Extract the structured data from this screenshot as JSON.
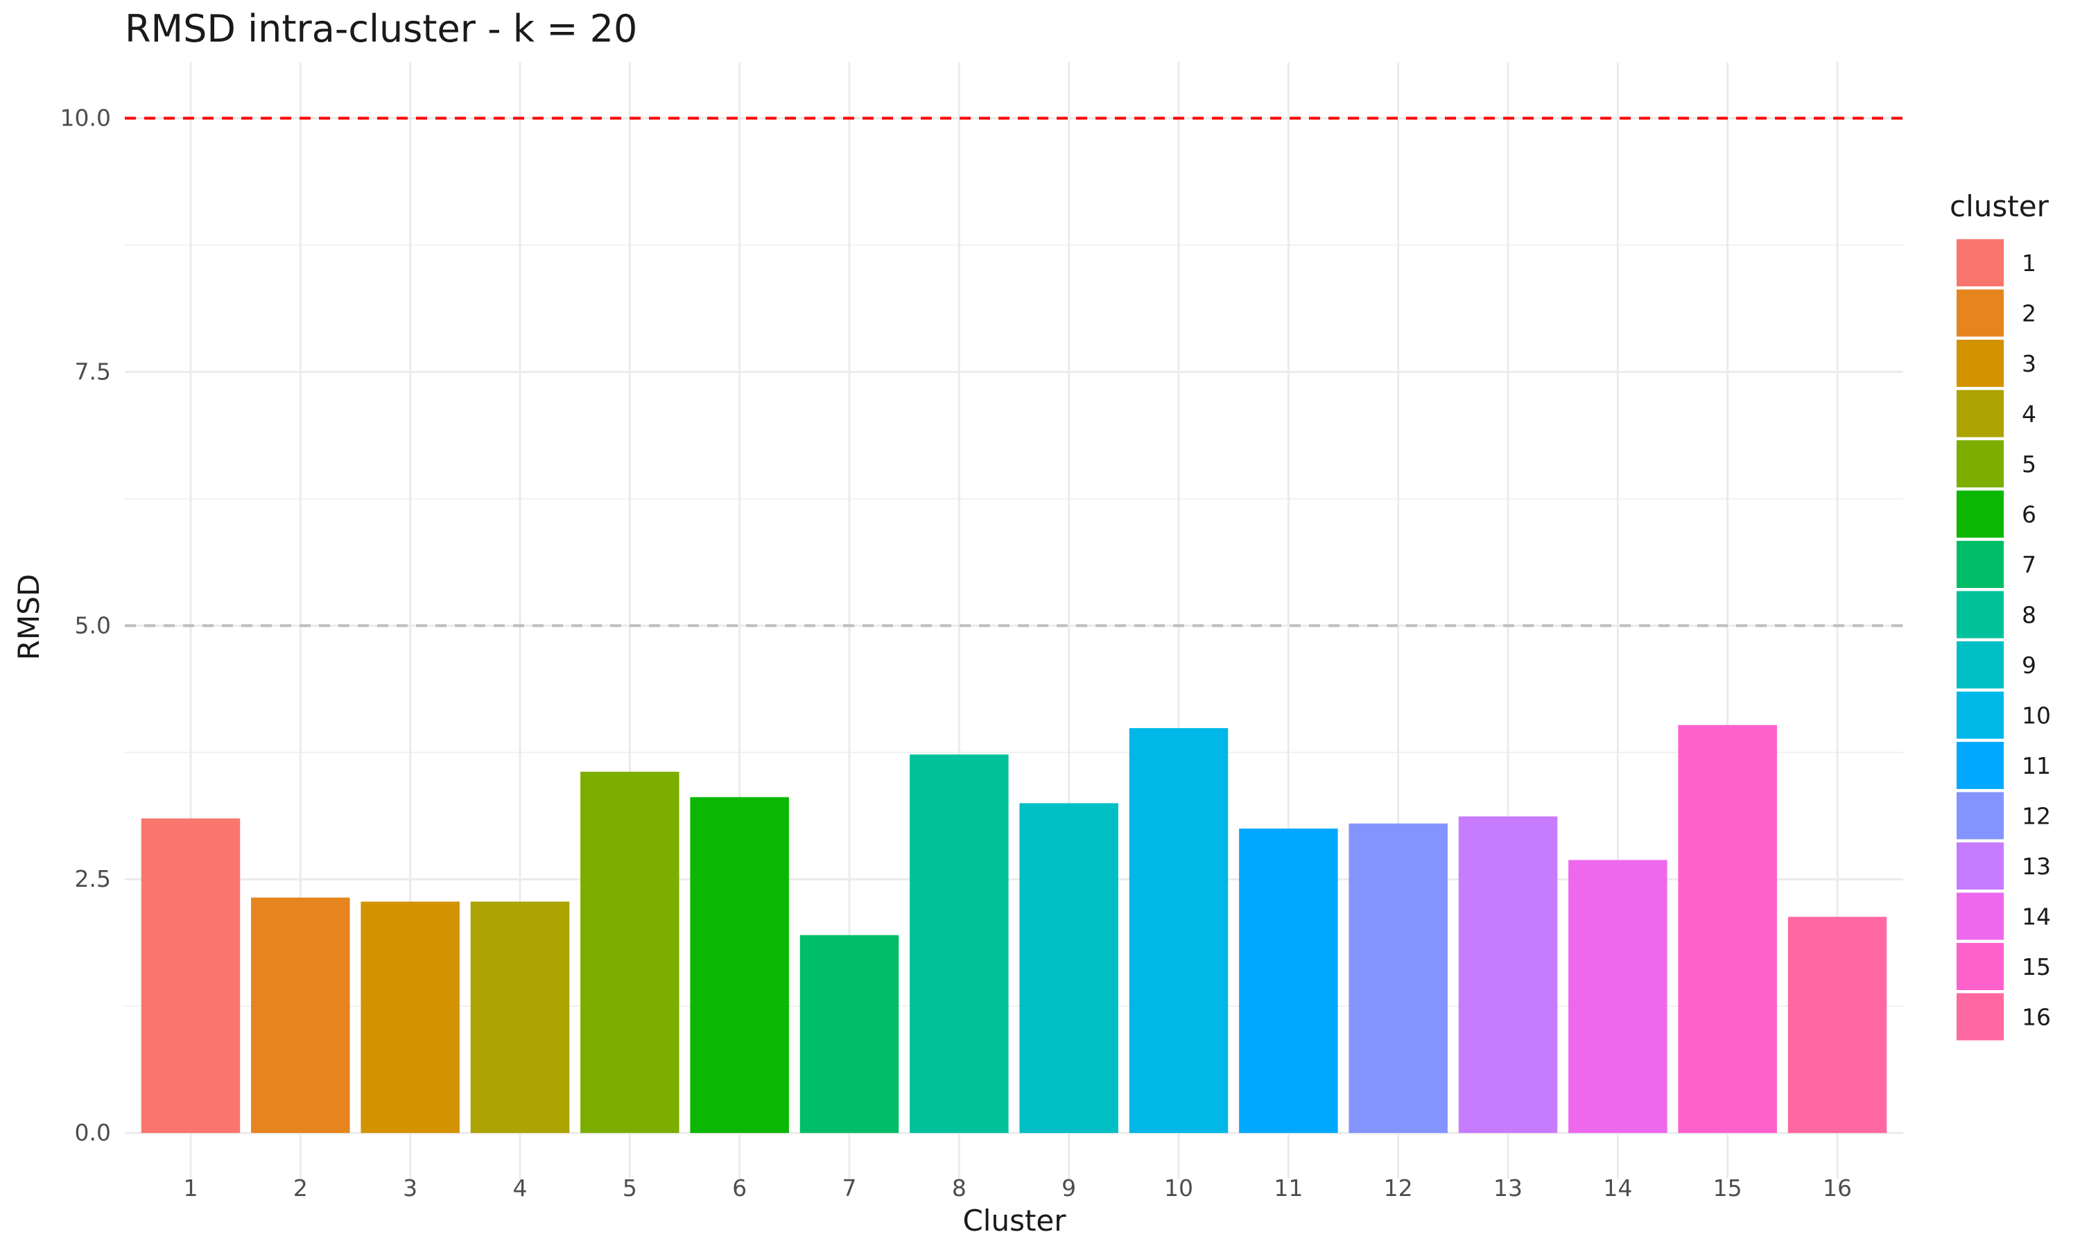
{
  "chart_data": {
    "type": "bar",
    "title": "RMSD intra-cluster - k = 20",
    "xlabel": "Cluster",
    "ylabel": "RMSD",
    "categories": [
      "1",
      "2",
      "3",
      "4",
      "5",
      "6",
      "7",
      "8",
      "9",
      "10",
      "11",
      "12",
      "13",
      "14",
      "15",
      "16"
    ],
    "values": [
      3.1,
      2.32,
      2.28,
      2.28,
      3.56,
      3.31,
      1.95,
      3.73,
      3.25,
      3.99,
      3.0,
      3.05,
      3.12,
      2.69,
      4.02,
      2.13
    ],
    "colors": [
      "#F8766D",
      "#E6851E",
      "#D39200",
      "#ACA300",
      "#7CAE00",
      "#0BB702",
      "#00BE67",
      "#00C19A",
      "#00BFC4",
      "#00B8E7",
      "#00A9FF",
      "#8494FF",
      "#C77CFF",
      "#ED68ED",
      "#FF61CC",
      "#FF68A1"
    ],
    "ylim": [
      -0.45,
      10.55
    ],
    "yticks": [
      0.0,
      2.5,
      5.0,
      7.5,
      10.0
    ],
    "ytick_labels": [
      "0.0",
      "2.5",
      "5.0",
      "7.5",
      "10.0"
    ],
    "reference_lines": [
      {
        "value": 10.0,
        "color": "#FF0000",
        "style": "dashed"
      },
      {
        "value": 5.0,
        "color": "#BEBEBE",
        "style": "dashed"
      }
    ],
    "legend": {
      "title": "cluster",
      "position": "right",
      "entries": [
        "1",
        "2",
        "3",
        "4",
        "5",
        "6",
        "7",
        "8",
        "9",
        "10",
        "11",
        "12",
        "13",
        "14",
        "15",
        "16"
      ]
    },
    "grid": true
  }
}
